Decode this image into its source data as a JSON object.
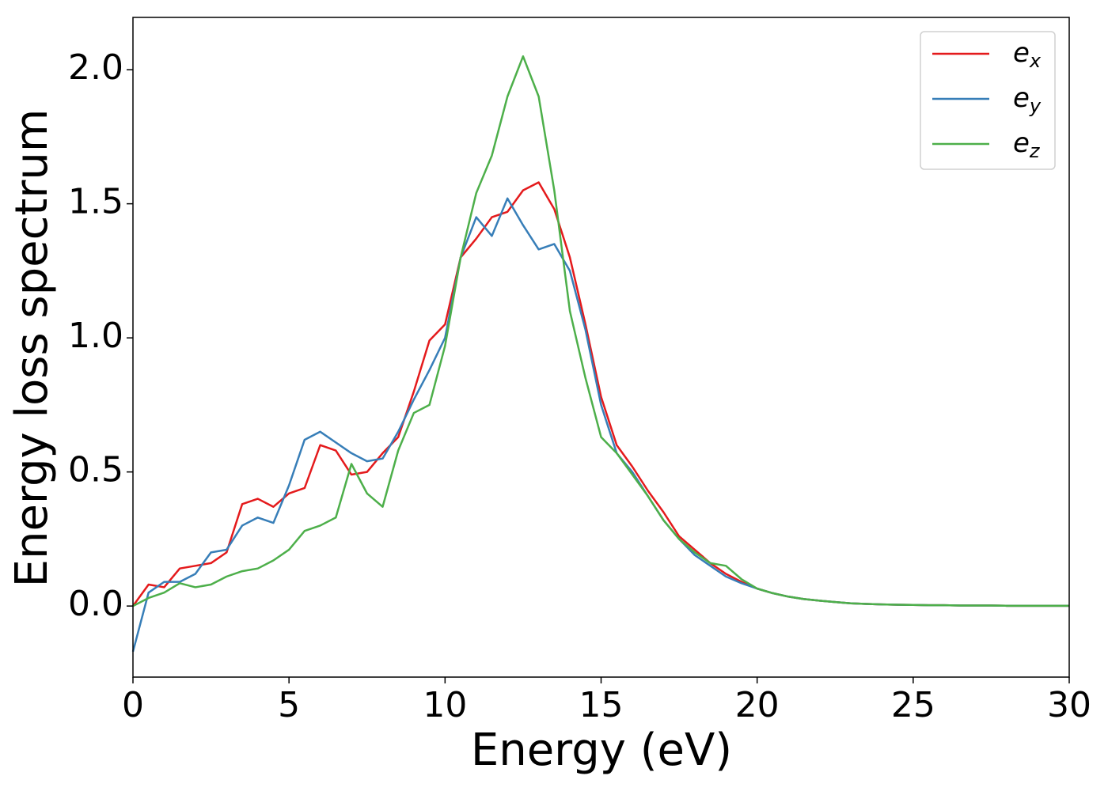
{
  "chart_data": {
    "type": "line",
    "xlabel": "Energy (eV)",
    "ylabel": "Energy loss spectrum",
    "x": [
      0,
      0.5,
      1,
      1.5,
      2,
      2.5,
      3,
      3.5,
      4,
      4.5,
      5,
      5.5,
      6,
      6.5,
      7,
      7.5,
      8,
      8.5,
      9,
      9.5,
      10,
      10.5,
      11,
      11.5,
      12,
      12.5,
      13,
      13.5,
      14,
      14.5,
      15,
      15.5,
      16,
      16.5,
      17,
      17.5,
      18,
      18.5,
      19,
      19.5,
      20,
      20.5,
      21,
      21.5,
      22,
      22.5,
      23,
      23.5,
      24,
      24.5,
      25,
      25.5,
      26,
      26.5,
      27,
      27.5,
      28,
      28.5,
      29,
      29.5,
      30
    ],
    "series": [
      {
        "name": "e_x",
        "color": "#e41a1c",
        "values": [
          0,
          0.08,
          0.07,
          0.14,
          0.15,
          0.16,
          0.2,
          0.38,
          0.4,
          0.37,
          0.42,
          0.44,
          0.6,
          0.58,
          0.49,
          0.5,
          0.57,
          0.63,
          0.8,
          0.99,
          1.05,
          1.3,
          1.37,
          1.45,
          1.47,
          1.55,
          1.58,
          1.48,
          1.3,
          1.05,
          0.78,
          0.6,
          0.52,
          0.43,
          0.35,
          0.26,
          0.21,
          0.16,
          0.12,
          0.09,
          0.065,
          0.048,
          0.035,
          0.026,
          0.02,
          0.015,
          0.01,
          0.008,
          0.006,
          0.005,
          0.004,
          0.003,
          0.003,
          0.002,
          0.002,
          0.002,
          0.001,
          0.001,
          0.001,
          0.001,
          0.001
        ]
      },
      {
        "name": "e_y",
        "color": "#377eb8",
        "values": [
          -0.17,
          0.05,
          0.09,
          0.09,
          0.12,
          0.2,
          0.21,
          0.3,
          0.33,
          0.31,
          0.45,
          0.62,
          0.65,
          0.61,
          0.57,
          0.54,
          0.55,
          0.65,
          0.77,
          0.88,
          1.0,
          1.3,
          1.45,
          1.38,
          1.52,
          1.42,
          1.33,
          1.35,
          1.25,
          1.03,
          0.75,
          0.57,
          0.5,
          0.41,
          0.32,
          0.25,
          0.19,
          0.15,
          0.11,
          0.085,
          0.065,
          0.048,
          0.035,
          0.026,
          0.02,
          0.015,
          0.01,
          0.008,
          0.006,
          0.005,
          0.004,
          0.003,
          0.003,
          0.002,
          0.002,
          0.002,
          0.001,
          0.001,
          0.001,
          0.001,
          0.001
        ]
      },
      {
        "name": "e_z",
        "color": "#4daf4a",
        "values": [
          0,
          0.03,
          0.05,
          0.085,
          0.07,
          0.08,
          0.11,
          0.13,
          0.14,
          0.17,
          0.21,
          0.28,
          0.3,
          0.33,
          0.53,
          0.42,
          0.37,
          0.58,
          0.72,
          0.75,
          0.97,
          1.3,
          1.54,
          1.68,
          1.9,
          2.05,
          1.9,
          1.55,
          1.1,
          0.85,
          0.63,
          0.57,
          0.49,
          0.41,
          0.32,
          0.25,
          0.2,
          0.16,
          0.15,
          0.1,
          0.065,
          0.048,
          0.035,
          0.026,
          0.02,
          0.015,
          0.01,
          0.008,
          0.006,
          0.005,
          0.004,
          0.003,
          0.003,
          0.002,
          0.002,
          0.002,
          0.001,
          0.001,
          0.001,
          0.001,
          0.001
        ]
      }
    ],
    "xlim": [
      0,
      30
    ],
    "xticks": [
      0,
      5,
      10,
      15,
      20,
      25,
      30
    ],
    "ylim": [
      -0.265,
      2.195
    ],
    "yticks": [
      {
        "value": 0,
        "label": "0.0"
      },
      0.5,
      {
        "value": 1,
        "label": "1.0"
      },
      1.5,
      {
        "value": 2,
        "label": "2.0"
      }
    ],
    "legend": "upper right"
  }
}
